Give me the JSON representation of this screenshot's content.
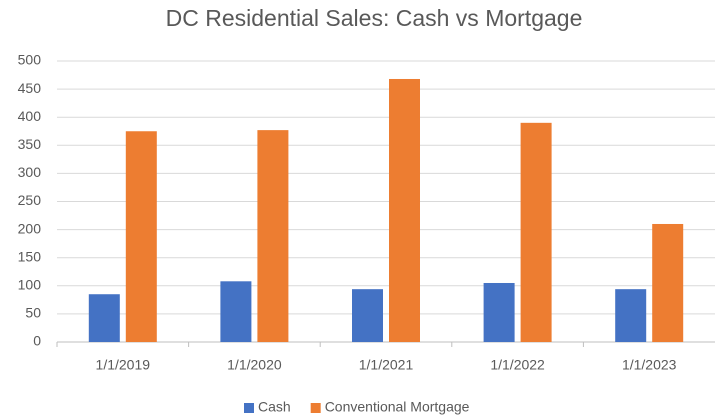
{
  "chart_data": {
    "type": "bar",
    "title": "DC Residential Sales: Cash vs Mortgage",
    "categories": [
      "1/1/2019",
      "1/1/2020",
      "1/1/2021",
      "1/1/2022",
      "1/1/2023"
    ],
    "series": [
      {
        "name": "Cash",
        "color": "#4472c4",
        "values": [
          85,
          108,
          94,
          105,
          94
        ]
      },
      {
        "name": "Conventional Mortgage",
        "color": "#ed7d31",
        "values": [
          375,
          377,
          468,
          390,
          210
        ]
      }
    ],
    "ylim": [
      0,
      500
    ],
    "yticks": [
      0,
      50,
      100,
      150,
      200,
      250,
      300,
      350,
      400,
      450,
      500
    ],
    "grid": true,
    "legend": "bottom"
  }
}
